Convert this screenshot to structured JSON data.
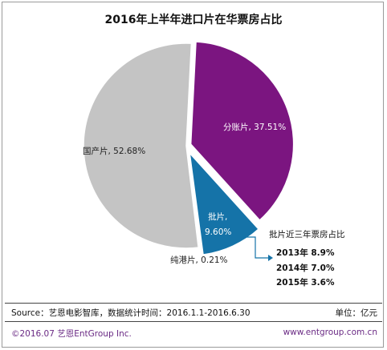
{
  "chart_data": {
    "type": "pie",
    "title": "2016年上半年进口片在华票房占比",
    "slices": [
      {
        "label": "分账片",
        "value": 37.51,
        "display": "分账片, 37.51%",
        "color": "#7b1580"
      },
      {
        "label": "批片",
        "value": 9.6,
        "display_line1": "批片,",
        "display_line2": "9.60%",
        "color": "#1573a8"
      },
      {
        "label": "纯港片",
        "value": 0.21,
        "display": "纯港片, 0.21%",
        "color": "#c8c8c8"
      },
      {
        "label": "国产片",
        "value": 52.68,
        "display": "国产片, 52.68%",
        "color": "#c4c4c4"
      }
    ]
  },
  "callout": {
    "title": "批片近三年票房占比",
    "items": [
      "2013年 8.9%",
      "2014年 7.0%",
      "2015年 3.6%"
    ]
  },
  "source_bar": {
    "source": "Source：艺恩电影智库，数据统计时间：2016.1.1-2016.6.30",
    "unit": "单位：亿元"
  },
  "footer": {
    "copyright": "©2016.07 艺恩EntGroup Inc.",
    "website": "www.entgroup.com.cn"
  }
}
